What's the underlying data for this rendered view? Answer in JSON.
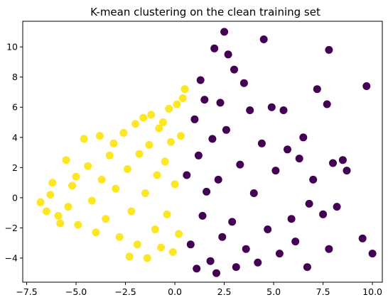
{
  "chart_data": {
    "type": "scatter",
    "title": "K-mean clustering on the clean training set",
    "xlabel": "",
    "ylabel": "",
    "xlim": [
      -7.7,
      10.5
    ],
    "ylim": [
      -5.6,
      11.7
    ],
    "grid": false,
    "x_ticks": [
      -7.5,
      -5.0,
      -2.5,
      0.0,
      2.5,
      5.0,
      7.5,
      10.0
    ],
    "x_tick_labels": [
      "−7.5",
      "−5.0",
      "−2.5",
      "0.0",
      "2.5",
      "5.0",
      "7.5",
      "10.0"
    ],
    "y_ticks": [
      -4,
      -2,
      0,
      2,
      4,
      6,
      8,
      10
    ],
    "y_tick_labels": [
      "−4",
      "−2",
      "0",
      "2",
      "4",
      "6",
      "8",
      "10"
    ],
    "series": [
      {
        "color": "#fde725",
        "points": [
          [
            -6.8,
            -0.3
          ],
          [
            -6.5,
            -0.9
          ],
          [
            -6.3,
            0.2
          ],
          [
            -6.2,
            1.0
          ],
          [
            -5.9,
            -1.2
          ],
          [
            -5.8,
            -1.7
          ],
          [
            -5.4,
            -0.6
          ],
          [
            -5.2,
            0.8
          ],
          [
            -5.0,
            1.4
          ],
          [
            -4.9,
            -1.8
          ],
          [
            -4.6,
            3.9
          ],
          [
            -4.4,
            2.1
          ],
          [
            -4.2,
            -0.2
          ],
          [
            -4.0,
            -2.3
          ],
          [
            -3.7,
            1.2
          ],
          [
            -3.5,
            -1.4
          ],
          [
            -3.3,
            2.8
          ],
          [
            -3.1,
            3.6
          ],
          [
            -3.0,
            0.6
          ],
          [
            -2.8,
            -2.6
          ],
          [
            -2.6,
            4.3
          ],
          [
            -2.4,
            1.9
          ],
          [
            -2.2,
            -0.9
          ],
          [
            -2.0,
            4.9
          ],
          [
            -1.9,
            -3.1
          ],
          [
            -1.8,
            2.9
          ],
          [
            -1.6,
            5.3
          ],
          [
            -1.5,
            0.3
          ],
          [
            -1.4,
            -4.0
          ],
          [
            -1.3,
            3.5
          ],
          [
            -1.2,
            5.5
          ],
          [
            -1.0,
            -2.1
          ],
          [
            -0.9,
            1.5
          ],
          [
            -0.8,
            4.6
          ],
          [
            -0.7,
            -3.3
          ],
          [
            -0.6,
            5.0
          ],
          [
            -0.5,
            2.4
          ],
          [
            -0.4,
            -1.1
          ],
          [
            -0.3,
            5.9
          ],
          [
            -0.2,
            3.7
          ],
          [
            -0.1,
            -3.6
          ],
          [
            0.0,
            0.9
          ],
          [
            0.1,
            6.2
          ],
          [
            0.2,
            -2.4
          ],
          [
            0.3,
            4.1
          ],
          [
            0.4,
            6.6
          ],
          [
            0.5,
            7.2
          ],
          [
            -5.5,
            2.5
          ],
          [
            -3.8,
            4.1
          ],
          [
            -2.3,
            -3.9
          ]
        ]
      },
      {
        "color": "#440154",
        "points": [
          [
            0.6,
            1.5
          ],
          [
            0.8,
            -3.1
          ],
          [
            1.0,
            5.2
          ],
          [
            1.1,
            -4.7
          ],
          [
            1.2,
            2.8
          ],
          [
            1.4,
            -1.2
          ],
          [
            1.5,
            6.5
          ],
          [
            1.6,
            0.4
          ],
          [
            1.8,
            -4.2
          ],
          [
            1.9,
            3.9
          ],
          [
            2.0,
            9.9
          ],
          [
            2.1,
            -5.0
          ],
          [
            2.2,
            1.2
          ],
          [
            2.3,
            6.3
          ],
          [
            2.4,
            -2.6
          ],
          [
            2.5,
            11.0
          ],
          [
            2.6,
            4.5
          ],
          [
            2.7,
            9.5
          ],
          [
            2.9,
            -1.6
          ],
          [
            3.0,
            8.5
          ],
          [
            3.1,
            -4.6
          ],
          [
            3.3,
            2.2
          ],
          [
            3.5,
            7.6
          ],
          [
            3.6,
            -3.4
          ],
          [
            3.8,
            5.8
          ],
          [
            4.0,
            0.3
          ],
          [
            4.2,
            -4.3
          ],
          [
            4.4,
            3.6
          ],
          [
            4.5,
            10.5
          ],
          [
            4.7,
            -2.1
          ],
          [
            4.9,
            6.0
          ],
          [
            5.1,
            1.8
          ],
          [
            5.3,
            -3.7
          ],
          [
            5.5,
            5.8
          ],
          [
            5.7,
            3.2
          ],
          [
            5.9,
            -1.4
          ],
          [
            6.1,
            -2.9
          ],
          [
            6.3,
            2.6
          ],
          [
            6.5,
            4.0
          ],
          [
            6.7,
            -4.6
          ],
          [
            7.0,
            1.2
          ],
          [
            7.2,
            7.2
          ],
          [
            7.5,
            -1.1
          ],
          [
            7.7,
            6.2
          ],
          [
            7.8,
            9.8
          ],
          [
            8.0,
            2.3
          ],
          [
            8.2,
            -0.6
          ],
          [
            8.5,
            2.5
          ],
          [
            8.7,
            1.8
          ],
          [
            9.5,
            -2.7
          ],
          [
            9.7,
            7.4
          ],
          [
            10.0,
            -3.7
          ],
          [
            7.8,
            -3.4
          ],
          [
            6.8,
            -0.4
          ],
          [
            1.3,
            7.8
          ]
        ]
      }
    ]
  }
}
